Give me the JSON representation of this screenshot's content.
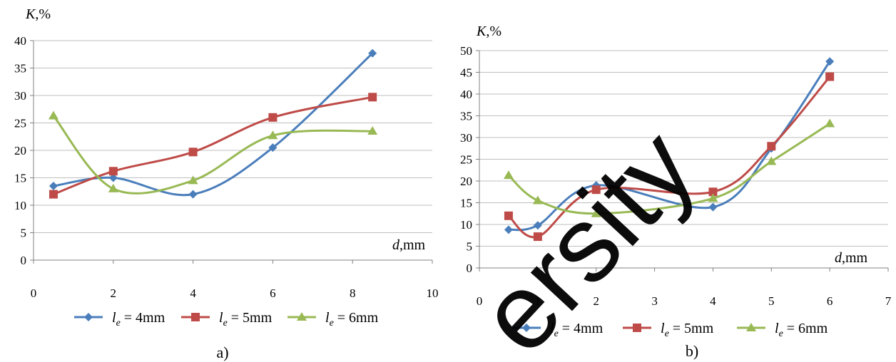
{
  "chart_data": [
    {
      "type": "line",
      "panel_label": "a)",
      "ylabel_var": "K",
      "ylabel_unit": ",%",
      "xlabel_var": "d",
      "xlabel_unit": ",mm",
      "xlim": [
        0,
        10
      ],
      "ylim": [
        0,
        40
      ],
      "xticks": [
        0,
        2,
        4,
        6,
        8,
        10
      ],
      "yticks": [
        0,
        5,
        10,
        15,
        20,
        25,
        30,
        35,
        40
      ],
      "grid": "horizontal",
      "legend": "bottom",
      "series": [
        {
          "name_base": "l",
          "name_sub": "e",
          "name_rest": " = 4mm",
          "color": "#4a7ebb",
          "marker": "diamond",
          "x": [
            0.5,
            2,
            4,
            6,
            8.5
          ],
          "y": [
            13.5,
            15.0,
            12.0,
            20.5,
            37.7
          ]
        },
        {
          "name_base": "l",
          "name_sub": "e",
          "name_rest": " = 5mm",
          "color": "#be4b48",
          "marker": "square",
          "x": [
            0.5,
            2,
            4,
            6,
            8.5
          ],
          "y": [
            12.0,
            16.2,
            19.7,
            26.0,
            29.7
          ]
        },
        {
          "name_base": "l",
          "name_sub": "e",
          "name_rest": " = 6mm",
          "color": "#98b954",
          "marker": "triangle",
          "x": [
            0.5,
            2,
            4,
            6,
            8.5
          ],
          "y": [
            26.3,
            13.0,
            14.5,
            22.7,
            23.5
          ]
        }
      ]
    },
    {
      "type": "line",
      "panel_label": "b)",
      "ylabel_var": "K",
      "ylabel_unit": ",%",
      "xlabel_var": "d",
      "xlabel_unit": ",mm",
      "xlim": [
        0,
        7
      ],
      "ylim": [
        0,
        50
      ],
      "xticks": [
        0,
        1,
        2,
        3,
        4,
        5,
        6,
        7
      ],
      "yticks": [
        0,
        5,
        10,
        15,
        20,
        25,
        30,
        35,
        40,
        45,
        50
      ],
      "grid": "horizontal",
      "legend": "bottom",
      "series": [
        {
          "name_base": "l",
          "name_sub": "e",
          "name_rest": " = 4mm",
          "color": "#4a7ebb",
          "marker": "diamond",
          "x": [
            0.5,
            1,
            2,
            4,
            5,
            6
          ],
          "y": [
            8.8,
            9.8,
            19.0,
            14.0,
            27.5,
            47.5
          ]
        },
        {
          "name_base": "l",
          "name_sub": "e",
          "name_rest": " = 5mm",
          "color": "#be4b48",
          "marker": "square",
          "x": [
            0.5,
            1,
            2,
            4,
            5,
            6
          ],
          "y": [
            12.0,
            7.2,
            18.0,
            17.5,
            28.0,
            44.0
          ]
        },
        {
          "name_base": "l",
          "name_sub": "e",
          "name_rest": " = 6mm",
          "color": "#98b954",
          "marker": "triangle",
          "x": [
            0.5,
            1,
            2,
            4,
            5,
            6
          ],
          "y": [
            21.3,
            15.5,
            12.5,
            16.0,
            24.5,
            33.2
          ]
        }
      ]
    }
  ],
  "watermark": "ersity"
}
